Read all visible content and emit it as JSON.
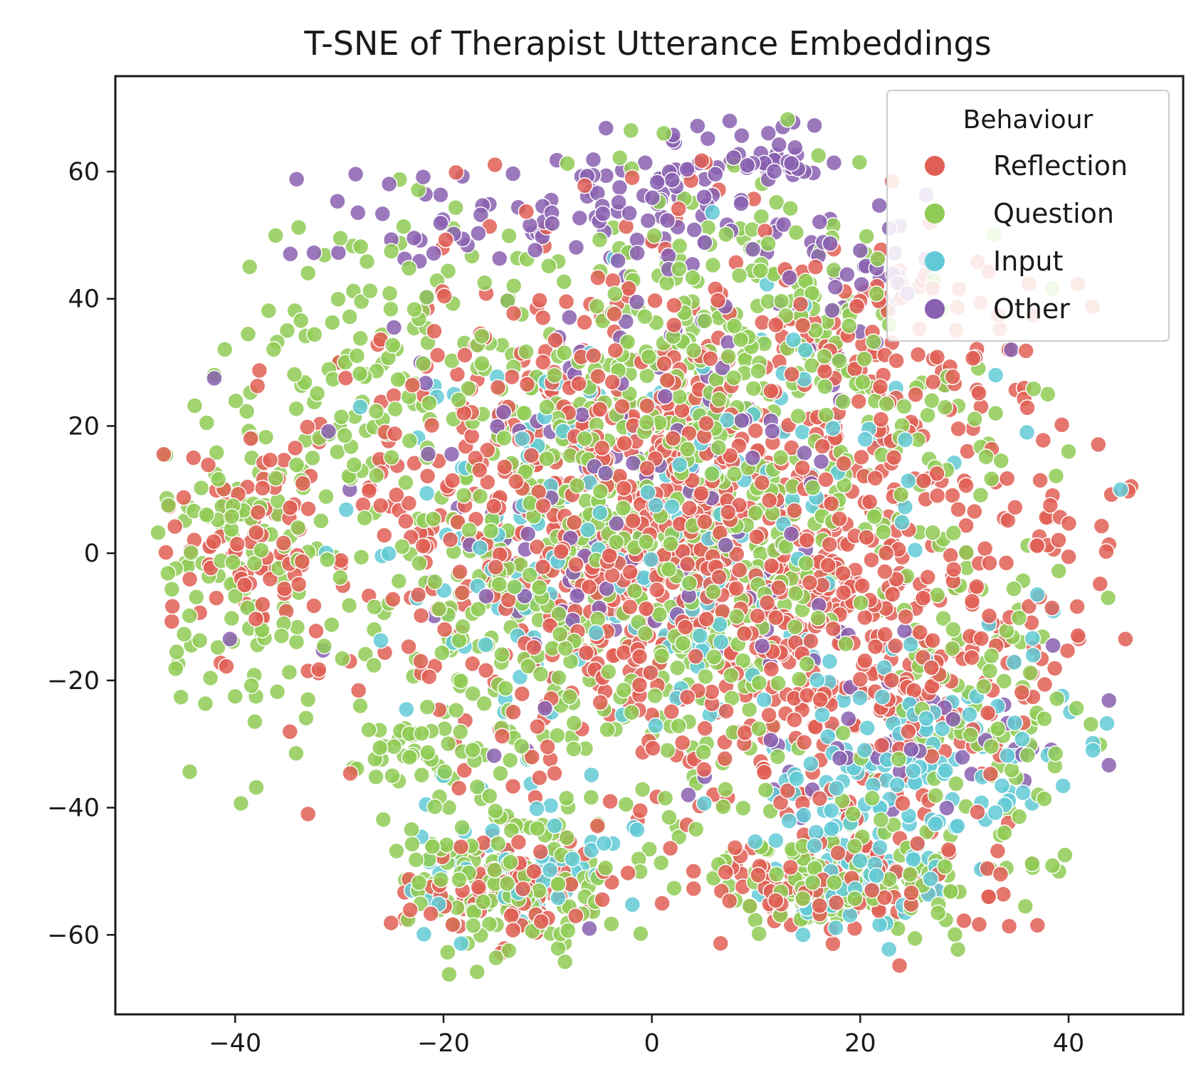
{
  "chart_data": {
    "type": "scatter",
    "title": "T-SNE of Therapist Utterance Embeddings",
    "xlabel": "",
    "ylabel": "",
    "xlim": [
      -51.5,
      51
    ],
    "ylim": [
      -72.5,
      75
    ],
    "xticks": [
      "−40",
      "−20",
      "0",
      "20",
      "40"
    ],
    "xtick_values": [
      -40,
      -20,
      0,
      20,
      40
    ],
    "yticks": [
      "60",
      "40",
      "20",
      "0",
      "−20",
      "−40",
      "−60"
    ],
    "ytick_values": [
      60,
      40,
      20,
      0,
      -20,
      -40,
      -60
    ],
    "grid": false,
    "legend": {
      "title": "Behaviour",
      "placement": "top-right"
    },
    "series": [
      {
        "name": "Reflection",
        "color": "#e05f55",
        "clusters": [
          {
            "cx": 0,
            "cy": 5,
            "sx": 14,
            "sy": 20,
            "n": 900
          },
          {
            "cx": -38,
            "cy": 2,
            "sx": 4,
            "sy": 8,
            "n": 80
          },
          {
            "cx": 22,
            "cy": -20,
            "sx": 9,
            "sy": 14,
            "n": 220
          },
          {
            "cx": 20,
            "cy": 35,
            "sx": 9,
            "sy": 9,
            "n": 90
          },
          {
            "cx": -14,
            "cy": -52,
            "sx": 5,
            "sy": 4,
            "n": 90
          },
          {
            "cx": 20,
            "cy": -52,
            "sx": 7,
            "sy": 4,
            "n": 100
          },
          {
            "cx": 35,
            "cy": 0,
            "sx": 5,
            "sy": 10,
            "n": 50
          }
        ],
        "extra_points": [
          [
            46,
            10.5
          ],
          [
            -33,
            -41
          ],
          [
            -33,
            -18.5
          ],
          [
            4,
            -50
          ],
          [
            -4,
            -39
          ],
          [
            -30,
            30
          ],
          [
            -44,
            15
          ],
          [
            -29,
            -17
          ]
        ]
      },
      {
        "name": "Question",
        "color": "#8fcb55",
        "clusters": [
          {
            "cx": 0,
            "cy": 5,
            "sx": 15,
            "sy": 22,
            "n": 780
          },
          {
            "cx": -40,
            "cy": 0,
            "sx": 5,
            "sy": 11,
            "n": 110
          },
          {
            "cx": -26,
            "cy": 30,
            "sx": 6,
            "sy": 12,
            "n": 90
          },
          {
            "cx": -14,
            "cy": -52,
            "sx": 6,
            "sy": 5,
            "n": 140
          },
          {
            "cx": 18,
            "cy": -51,
            "sx": 8,
            "sy": 4,
            "n": 130
          },
          {
            "cx": -21,
            "cy": -30,
            "sx": 4,
            "sy": 4,
            "n": 50
          },
          {
            "cx": 33,
            "cy": -25,
            "sx": 5,
            "sy": 15,
            "n": 90
          },
          {
            "cx": 10,
            "cy": 38,
            "sx": 8,
            "sy": 10,
            "n": 110
          }
        ],
        "extra_points": [
          [
            -40,
            -22.5
          ],
          [
            -38,
            -22.5
          ],
          [
            -33,
            -23
          ],
          [
            -35,
            35
          ],
          [
            -42,
            28
          ],
          [
            33,
            22
          ],
          [
            38,
            25
          ],
          [
            40,
            16
          ]
        ]
      },
      {
        "name": "Input",
        "color": "#62cad6",
        "clusters": [
          {
            "cx": 0,
            "cy": 0,
            "sx": 14,
            "sy": 18,
            "n": 220
          },
          {
            "cx": 26,
            "cy": -32,
            "sx": 7,
            "sy": 7,
            "n": 90
          },
          {
            "cx": 20,
            "cy": -48,
            "sx": 5,
            "sy": 6,
            "n": 80
          },
          {
            "cx": -12,
            "cy": -50,
            "sx": 5,
            "sy": 5,
            "n": 50
          }
        ],
        "extra_points": [
          [
            45,
            10
          ],
          [
            14.5,
            -60
          ],
          [
            37,
            -6.5
          ],
          [
            -20,
            -35
          ],
          [
            33,
            28
          ],
          [
            -28,
            23
          ],
          [
            36,
            19
          ]
        ]
      },
      {
        "name": "Other",
        "color": "#8a60b0",
        "clusters": [
          {
            "cx": -15,
            "cy": 53,
            "sx": 9,
            "sy": 4,
            "n": 60
          },
          {
            "cx": 3,
            "cy": 58,
            "sx": 5,
            "sy": 7,
            "n": 70
          },
          {
            "cx": 12,
            "cy": 61,
            "sx": 2.5,
            "sy": 1.5,
            "n": 25
          },
          {
            "cx": 0,
            "cy": 10,
            "sx": 12,
            "sy": 18,
            "n": 150
          },
          {
            "cx": 18,
            "cy": 44,
            "sx": 5,
            "sy": 6,
            "n": 35
          },
          {
            "cx": 25,
            "cy": -30,
            "sx": 8,
            "sy": 6,
            "n": 40
          }
        ],
        "extra_points": [
          [
            -42,
            27.5
          ],
          [
            -40.5,
            -13.5
          ],
          [
            -29,
            10
          ],
          [
            38.5,
            -14.5
          ],
          [
            34.5,
            32
          ],
          [
            3.5,
            -38
          ],
          [
            -12,
            -31
          ],
          [
            -6,
            -59
          ]
        ]
      }
    ]
  }
}
